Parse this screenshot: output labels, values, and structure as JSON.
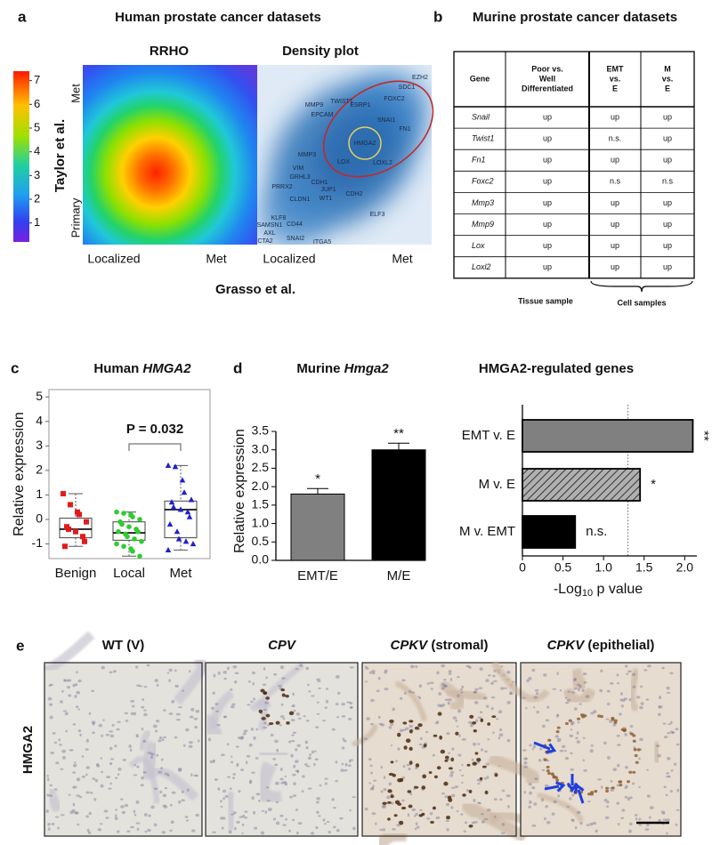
{
  "panel_a": {
    "letter": "a",
    "title": "Human prostate cancer datasets",
    "rrho_title": "RRHO",
    "density_title": "Density plot",
    "y_label": "Taylor et al.",
    "y_top": "Met",
    "y_bottom": "Primary",
    "x_left_1": "Localized",
    "x_right_1": "Met",
    "x_left_2": "Localized",
    "x_right_2": "Met",
    "x_label": "Grasso et al.",
    "colorbar_lim": [
      0.2,
      7.4
    ],
    "colorbar_ticks": [
      1,
      2,
      3,
      4,
      5,
      6,
      7
    ],
    "genes": [
      "EZH2",
      "SDC1",
      "FOXC2",
      "TWIST1",
      "ESRP1",
      "MMP9",
      "EPCAM",
      "SNAI1",
      "FN1",
      "HMGA2",
      "MMP3",
      "LOX",
      "LOXL2",
      "VIM",
      "GRHL3",
      "CDH1",
      "PRRX2",
      "JUP1",
      "CLDN1",
      "WT1",
      "CDH2",
      "ELF3",
      "KLF8",
      "SAMSN1",
      "CD44",
      "AXL",
      "SNAI2",
      "ITGA5",
      "CTA2"
    ]
  },
  "panel_b": {
    "letter": "b",
    "title": "Murine prostate cancer datasets",
    "header": [
      [
        "Gene"
      ],
      [
        "Poor vs.",
        "Well",
        "Differentiated"
      ],
      [
        "EMT",
        "vs.",
        "E"
      ],
      [
        "M",
        "vs.",
        "E"
      ]
    ],
    "rows": [
      [
        "Snail",
        "up",
        "up",
        "up"
      ],
      [
        "Twist1",
        "up",
        "n.s.",
        "up"
      ],
      [
        "Fn1",
        "up",
        "up",
        "up"
      ],
      [
        "Foxc2",
        "up",
        "n.s",
        "n.s"
      ],
      [
        "Mmp3",
        "up",
        "up",
        "up"
      ],
      [
        "Mmp9",
        "up",
        "up",
        "up"
      ],
      [
        "Lox",
        "up",
        "up",
        "up"
      ],
      [
        "Loxl2",
        "up",
        "up",
        "up"
      ]
    ],
    "tissue_label": "Tissue sample",
    "cell_label": "Cell samples"
  },
  "chart_data": [
    {
      "type": "box",
      "panel": "c",
      "title": "Human ",
      "title_gene": "HMGA2",
      "y_label": "Relative expression",
      "ylim": [
        -1.6,
        5.3
      ],
      "yticks": [
        -1,
        0,
        1,
        2,
        3,
        4,
        5
      ],
      "categories": [
        "Benign",
        "Local",
        "Met"
      ],
      "annotation": "P = 0.032",
      "boxes": [
        {
          "color": "#e31a1c",
          "marker": "square",
          "whisker_low": -1.1,
          "q1": -0.75,
          "median": -0.4,
          "q3": 0.05,
          "whisker_high": 1.05,
          "points": [
            1.05,
            0.6,
            0.3,
            0.2,
            -0.1,
            -0.3,
            -0.4,
            -0.5,
            -0.7,
            -0.9,
            -1.1
          ]
        },
        {
          "color": "#2ecc2e",
          "marker": "circle",
          "whisker_low": -1.5,
          "q1": -0.85,
          "median": -0.55,
          "q3": -0.1,
          "whisker_high": 0.3,
          "points": [
            0.3,
            0.25,
            0.2,
            0.1,
            0,
            -0.1,
            -0.2,
            -0.3,
            -0.4,
            -0.5,
            -0.5,
            -0.6,
            -0.7,
            -0.8,
            -0.9,
            -1,
            -1.1,
            -1.2,
            -1.3,
            -1.5
          ]
        },
        {
          "color": "#2020cc",
          "marker": "triangle",
          "whisker_low": -1.25,
          "q1": -0.75,
          "median": 0.4,
          "q3": 0.75,
          "whisker_high": 2.2,
          "points": [
            2.2,
            2.15,
            1.6,
            1.1,
            0.8,
            0.7,
            0.5,
            0.4,
            0.3,
            0.1,
            -0.2,
            -0.5,
            -0.8,
            -0.9,
            -1.0,
            -1.25
          ]
        }
      ]
    },
    {
      "type": "bar",
      "panel": "d",
      "title": "Murine ",
      "title_gene": "Hmga2",
      "y_label": "Relative expression",
      "ylim": [
        0,
        3.5
      ],
      "yticks": [
        {
          "value": 0,
          "label": "0.0"
        },
        0.5,
        {
          "value": 1,
          "label": "1.0"
        },
        1.5,
        {
          "value": 2,
          "label": "2.0"
        },
        2.5,
        {
          "value": 3,
          "label": "3.0"
        },
        3.5
      ],
      "categories": [
        "EMT/E",
        "M/E"
      ],
      "values": [
        1.8,
        3.0
      ],
      "errors": [
        0.15,
        0.18
      ],
      "annotations": [
        "*",
        "**"
      ],
      "colors": [
        "#808080",
        "#000000"
      ]
    },
    {
      "type": "hbar",
      "title": "HMGA2-regulated genes",
      "x_label": "-Log",
      "x_label_sub": "10",
      "x_label_rest": " p value",
      "xlim": [
        0,
        2.15
      ],
      "xticks": [
        0,
        0.5,
        {
          "value": 1,
          "label": "1.0"
        },
        1.5,
        {
          "value": 2,
          "label": "2.0"
        }
      ],
      "categories": [
        "EMT v. E",
        "M v. E",
        "M v. EMT"
      ],
      "values": [
        2.1,
        1.45,
        0.65
      ],
      "annotations": [
        "**",
        "*",
        "n.s."
      ],
      "colors": [
        "#808080",
        "#808080",
        "#000000"
      ],
      "hatched": [
        false,
        true,
        false
      ],
      "reference_line": 1.3
    }
  ],
  "panel_e": {
    "letter": "e",
    "row_label": "HMGA2",
    "images": [
      {
        "italic": "",
        "plain": "WT (V)"
      },
      {
        "italic": "CPV",
        "plain": ""
      },
      {
        "italic": "CPKV",
        "plain": " (stromal)"
      },
      {
        "italic": "CPKV",
        "plain": " (epithelial)"
      }
    ]
  }
}
